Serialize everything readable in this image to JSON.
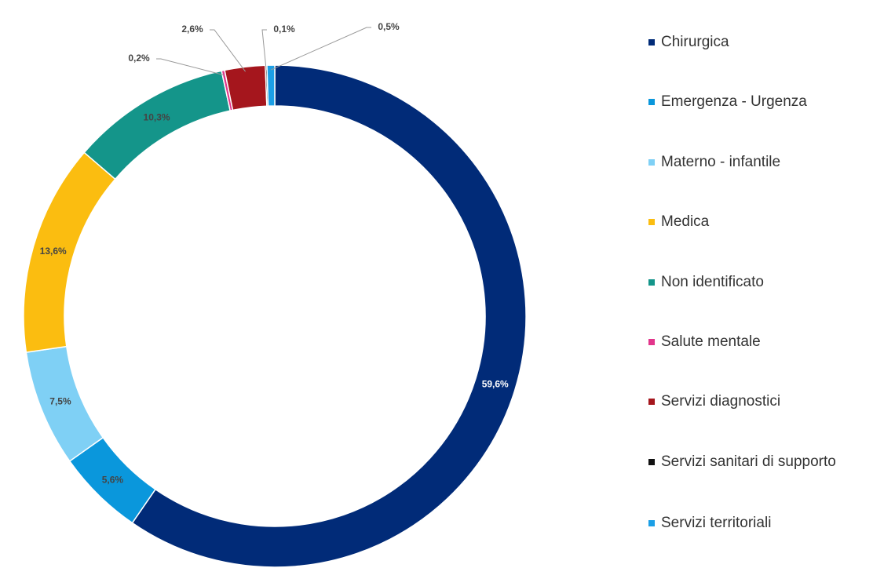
{
  "chart_data": {
    "type": "pie",
    "donut": true,
    "categories": [
      "Chirurgica",
      "Emergenza - Urgenza",
      "Materno - infantile",
      "Medica",
      "Non identificato",
      "Salute mentale",
      "Servizi diagnostici",
      "Servizi sanitari di supporto",
      "Servizi territoriali"
    ],
    "values": [
      59.6,
      5.6,
      7.5,
      13.6,
      10.3,
      0.2,
      2.6,
      0.1,
      0.5
    ],
    "value_labels": [
      "59,6%",
      "5,6%",
      "7,5%",
      "13,6%",
      "10,3%",
      "0,2%",
      "2,6%",
      "0,1%",
      "0,5%"
    ],
    "colors": [
      "#012b78",
      "#0a97dc",
      "#7fd0f5",
      "#fbbd10",
      "#14958a",
      "#e2358b",
      "#a5161d",
      "#111111",
      "#1b9fe6"
    ],
    "legend": "right"
  }
}
